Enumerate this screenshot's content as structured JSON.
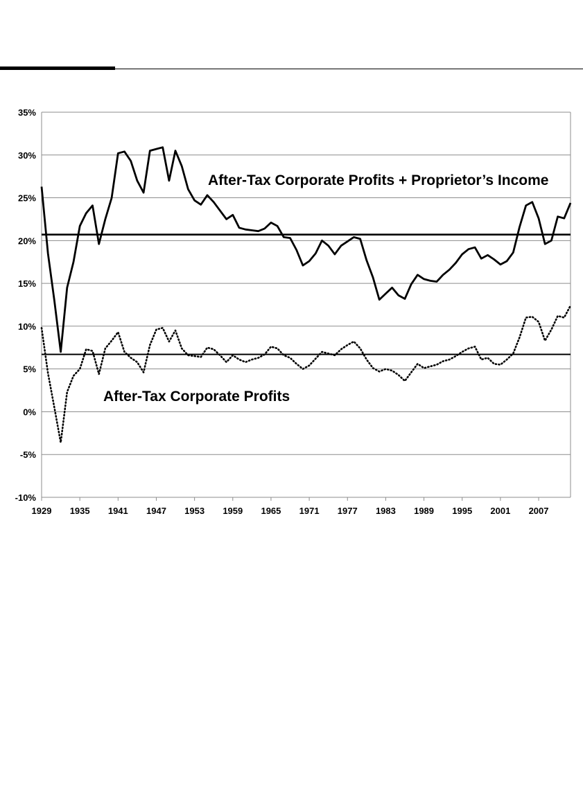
{
  "chart_data": {
    "type": "line",
    "title": "",
    "xlabel": "",
    "ylabel": "",
    "xlim": [
      1929,
      2011
    ],
    "ylim": [
      -10,
      35
    ],
    "grid": true,
    "y_ticks": [
      "35%",
      "30%",
      "25%",
      "20%",
      "15%",
      "10%",
      "5%",
      "0%",
      "-5%",
      "-10%"
    ],
    "y_tick_values": [
      35,
      30,
      25,
      20,
      15,
      10,
      5,
      0,
      -5,
      -10
    ],
    "x_ticks": [
      "1929",
      "1935",
      "1941",
      "1947",
      "1953",
      "1959",
      "1965",
      "1971",
      "1977",
      "1983",
      "1989",
      "1995",
      "2001",
      "2007"
    ],
    "x_tick_values": [
      1929,
      1935,
      1941,
      1947,
      1953,
      1959,
      1965,
      1971,
      1977,
      1983,
      1989,
      1995,
      2001,
      2007
    ],
    "annotations": [
      {
        "text": "After-Tax Corporate Profits + Proprietor’s Income",
        "near_series": 0
      },
      {
        "text": "After-Tax Corporate Profits",
        "near_series": 1
      }
    ],
    "series": [
      {
        "style": "solid",
        "x": [
          1929,
          1930,
          1931,
          1932,
          1933,
          1934,
          1935,
          1936,
          1937,
          1938,
          1939,
          1940,
          1941,
          1942,
          1943,
          1944,
          1945,
          1946,
          1947,
          1948,
          1949,
          1950,
          1951,
          1952,
          1953,
          1954,
          1955,
          1956,
          1957,
          1958,
          1959,
          1960,
          1961,
          1962,
          1963,
          1964,
          1965,
          1966,
          1967,
          1968,
          1969,
          1970,
          1971,
          1972,
          1973,
          1974,
          1975,
          1976,
          1977,
          1978,
          1979,
          1980,
          1981,
          1982,
          1983,
          1984,
          1985,
          1986,
          1987,
          1988,
          1989,
          1990,
          1991,
          1992,
          1993,
          1994,
          1995,
          1996,
          1997,
          1998,
          1999,
          2000,
          2001,
          2002,
          2003,
          2004,
          2005,
          2006,
          2007,
          2008,
          2009,
          2010,
          2011,
          2012
        ],
        "values": [
          26.3,
          18.5,
          13.0,
          7.0,
          14.5,
          17.5,
          21.7,
          23.2,
          24.1,
          19.6,
          22.5,
          25.0,
          30.2,
          30.4,
          29.3,
          27.0,
          25.6,
          30.5,
          30.7,
          30.9,
          27.0,
          30.5,
          28.7,
          26.0,
          24.7,
          24.2,
          25.3,
          24.5,
          23.5,
          22.5,
          23.0,
          21.5,
          21.3,
          21.2,
          21.1,
          21.4,
          22.1,
          21.7,
          20.4,
          20.3,
          18.9,
          17.1,
          17.6,
          18.5,
          20.0,
          19.4,
          18.4,
          19.4,
          19.9,
          20.4,
          20.2,
          17.7,
          15.7,
          13.1,
          13.8,
          14.5,
          13.6,
          13.2,
          14.9,
          16.0,
          15.5,
          15.3,
          15.2,
          16.0,
          16.6,
          17.4,
          18.4,
          19.0,
          19.2,
          17.9,
          18.3,
          17.8,
          17.2,
          17.6,
          18.6,
          21.6,
          24.1,
          24.5,
          22.6,
          19.6,
          20.0,
          22.8,
          22.6,
          24.4
        ]
      },
      {
        "style": "dotted",
        "x": [
          1929,
          1930,
          1931,
          1932,
          1933,
          1934,
          1935,
          1936,
          1937,
          1938,
          1939,
          1940,
          1941,
          1942,
          1943,
          1944,
          1945,
          1946,
          1947,
          1948,
          1949,
          1950,
          1951,
          1952,
          1953,
          1954,
          1955,
          1956,
          1957,
          1958,
          1959,
          1960,
          1961,
          1962,
          1963,
          1964,
          1965,
          1966,
          1967,
          1968,
          1969,
          1970,
          1971,
          1972,
          1973,
          1974,
          1975,
          1976,
          1977,
          1978,
          1979,
          1980,
          1981,
          1982,
          1983,
          1984,
          1985,
          1986,
          1987,
          1988,
          1989,
          1990,
          1991,
          1992,
          1993,
          1994,
          1995,
          1996,
          1997,
          1998,
          1999,
          2000,
          2001,
          2002,
          2003,
          2004,
          2005,
          2006,
          2007,
          2008,
          2009,
          2010,
          2011,
          2012
        ],
        "values": [
          9.8,
          4.5,
          0.5,
          -3.6,
          2.3,
          4.2,
          5.0,
          7.3,
          7.1,
          4.4,
          7.4,
          8.3,
          9.3,
          7.0,
          6.3,
          5.8,
          4.6,
          7.8,
          9.6,
          9.8,
          8.2,
          9.5,
          7.4,
          6.6,
          6.5,
          6.4,
          7.5,
          7.3,
          6.6,
          5.8,
          6.6,
          6.1,
          5.8,
          6.1,
          6.3,
          6.7,
          7.6,
          7.4,
          6.6,
          6.3,
          5.6,
          5.0,
          5.4,
          6.2,
          7.0,
          6.8,
          6.6,
          7.3,
          7.8,
          8.2,
          7.4,
          6.1,
          5.1,
          4.7,
          5.0,
          4.8,
          4.3,
          3.6,
          4.6,
          5.6,
          5.1,
          5.3,
          5.5,
          5.9,
          6.1,
          6.5,
          7.0,
          7.4,
          7.6,
          6.1,
          6.3,
          5.6,
          5.5,
          6.1,
          6.8,
          8.7,
          11.0,
          11.1,
          10.5,
          8.3,
          9.6,
          11.2,
          11.0,
          12.4
        ]
      }
    ],
    "reference_lines": [
      {
        "y": 20.7
      },
      {
        "y": 6.7
      }
    ]
  }
}
